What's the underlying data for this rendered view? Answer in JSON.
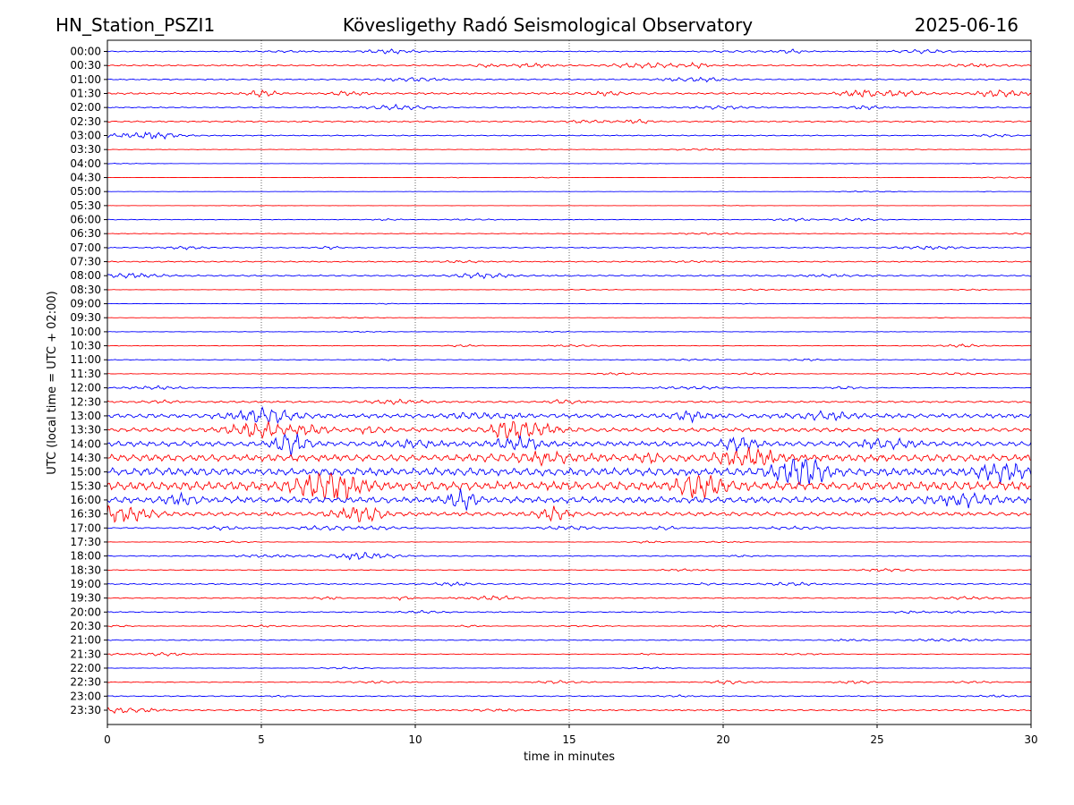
{
  "header": {
    "station": "HN_Station_PSZI1",
    "observatory": "Kövesligethy Radó Seismological Observatory",
    "date": "2025-06-16"
  },
  "chart_data": {
    "type": "line",
    "title": "Kövesligethy Radó Seismological Observatory",
    "xlabel": "time in minutes",
    "ylabel": "UTC (local time = UTC + 02:00)",
    "xlim": [
      0,
      30
    ],
    "xticks": [
      0,
      5,
      10,
      15,
      20,
      25,
      30
    ],
    "grid": "vertical dotted at 5-minute intervals",
    "trace_colors": [
      "#0000ff",
      "#ff0000"
    ],
    "row_labels": [
      "00:00",
      "00:30",
      "01:00",
      "01:30",
      "02:00",
      "02:30",
      "03:00",
      "03:30",
      "04:00",
      "04:30",
      "05:00",
      "05:30",
      "06:00",
      "06:30",
      "07:00",
      "07:30",
      "08:00",
      "08:30",
      "09:00",
      "09:30",
      "10:00",
      "10:30",
      "11:00",
      "11:30",
      "12:00",
      "12:30",
      "13:00",
      "13:30",
      "14:00",
      "14:30",
      "15:00",
      "15:30",
      "16:00",
      "16:30",
      "17:00",
      "17:30",
      "18:00",
      "18:30",
      "19:00",
      "19:30",
      "20:00",
      "20:30",
      "21:00",
      "21:30",
      "22:00",
      "22:30",
      "23:00",
      "23:30"
    ],
    "row_activity": [
      0.25,
      0.35,
      0.3,
      0.45,
      0.3,
      0.35,
      0.25,
      0.12,
      0.05,
      0.05,
      0.05,
      0.05,
      0.18,
      0.15,
      0.25,
      0.3,
      0.35,
      0.1,
      0.1,
      0.08,
      0.12,
      0.15,
      0.15,
      0.15,
      0.2,
      0.45,
      1.1,
      1.0,
      1.3,
      1.8,
      2.0,
      2.2,
      1.6,
      1.0,
      0.3,
      0.12,
      0.25,
      0.2,
      0.3,
      0.25,
      0.25,
      0.15,
      0.25,
      0.12,
      0.12,
      0.2,
      0.25,
      0.35
    ]
  }
}
